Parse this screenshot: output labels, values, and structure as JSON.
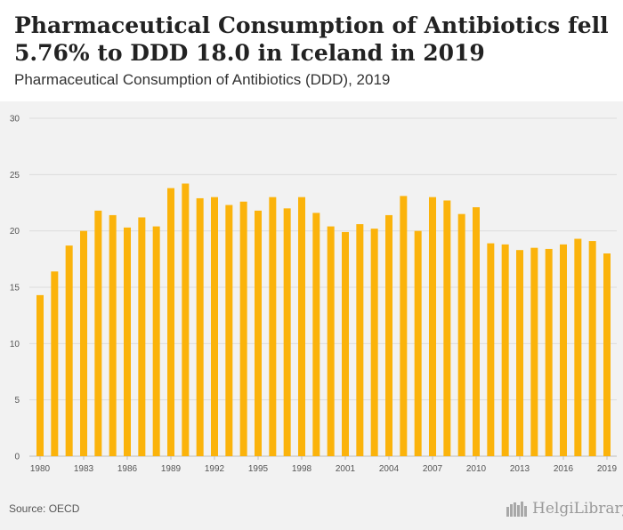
{
  "title": "Pharmaceutical Consumption of Antibiotics fell 5.76% to DDD 18.0 in Iceland in 2019",
  "subtitle": "Pharmaceutical Consumption of Antibiotics (DDD), 2019",
  "source": "Source: OECD",
  "logo_text": "HelgiLibrary",
  "colors": {
    "bar": "#fbb30b",
    "grid": "#dcdcdc",
    "background": "#f2f2f2"
  },
  "chart_data": {
    "type": "bar",
    "categories": [
      "1980",
      "1981",
      "1982",
      "1983",
      "1984",
      "1985",
      "1986",
      "1987",
      "1988",
      "1989",
      "1990",
      "1991",
      "1992",
      "1993",
      "1994",
      "1995",
      "1996",
      "1997",
      "1998",
      "1999",
      "2000",
      "2001",
      "2002",
      "2003",
      "2004",
      "2005",
      "2006",
      "2007",
      "2008",
      "2009",
      "2010",
      "2011",
      "2012",
      "2013",
      "2014",
      "2015",
      "2016",
      "2017",
      "2018",
      "2019"
    ],
    "values": [
      14.3,
      16.4,
      18.7,
      20.0,
      21.8,
      21.4,
      20.3,
      21.2,
      20.4,
      23.8,
      24.2,
      22.9,
      23.0,
      22.3,
      22.6,
      21.8,
      23.0,
      22.0,
      23.0,
      21.6,
      20.4,
      19.9,
      20.6,
      20.2,
      21.4,
      23.1,
      20.0,
      23.0,
      22.7,
      21.5,
      22.1,
      18.9,
      18.8,
      18.3,
      18.5,
      18.4,
      18.8,
      19.3,
      19.1,
      18.0
    ],
    "x_tick_labels": [
      "1980",
      "1983",
      "1986",
      "1989",
      "1992",
      "1995",
      "1998",
      "2001",
      "2004",
      "2007",
      "2010",
      "2013",
      "2016",
      "2019"
    ],
    "y_ticks": [
      "0",
      "5",
      "10",
      "15",
      "20",
      "25",
      "30"
    ],
    "ylim": [
      0,
      30
    ],
    "grid": true
  }
}
